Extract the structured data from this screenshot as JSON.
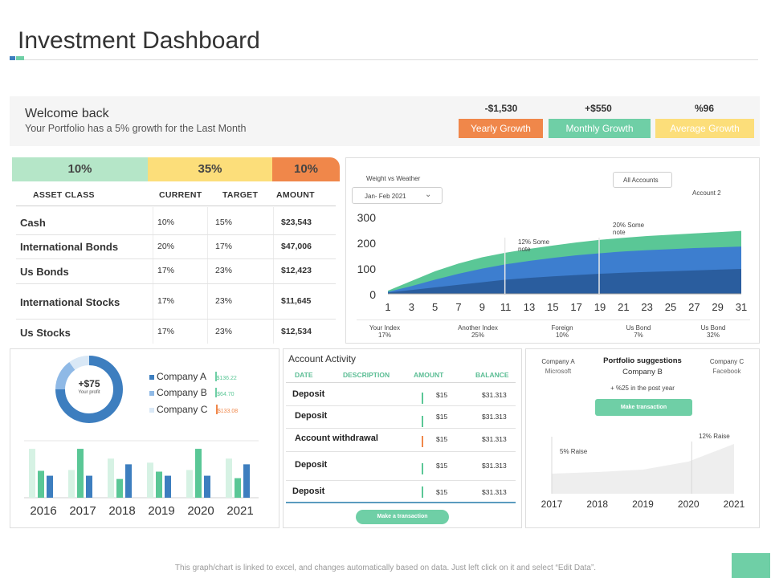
{
  "header": {
    "title": "Investment Dashboard"
  },
  "welcome": {
    "title": "Welcome back",
    "subtitle": "Your Portfolio has a 5% growth for the Last Month",
    "growth": [
      {
        "value": "-$1,530",
        "label": "Yearly Growth",
        "color": "#f0874a"
      },
      {
        "value": "+$550",
        "label": "Monthly Growth",
        "color": "#6fcfa6"
      },
      {
        "value": "%96",
        "label": "Average Growth",
        "color": "#fcde7a"
      }
    ]
  },
  "asset_table": {
    "percentages": [
      {
        "label": "10%",
        "color": "#b5e6c8"
      },
      {
        "label": "35%",
        "color": "#fcde7a"
      },
      {
        "label": "10%",
        "color": "#f0874a"
      }
    ],
    "headers": [
      "ASSET CLASS",
      "CURRENT",
      "TARGET",
      "AMOUNT"
    ],
    "rows": [
      {
        "name": "Cash",
        "current": "10%",
        "target": "15%",
        "amount": "$23,543"
      },
      {
        "name": "International Bonds",
        "current": "20%",
        "target": "17%",
        "amount": "$47,006"
      },
      {
        "name": "Us Bonds",
        "current": "17%",
        "target": "23%",
        "amount": "$12,423"
      },
      {
        "name": "International Stocks",
        "current": "17%",
        "target": "23%",
        "amount": "$11,645"
      },
      {
        "name": "Us  Stocks",
        "current": "17%",
        "target": "23%",
        "amount": "$12,534"
      }
    ]
  },
  "area_chart": {
    "title": "Weight  vs  Weather",
    "date_dropdown": "Jan- Feb 2021",
    "accounts_dropdown": "All Accounts",
    "account_label": "Account 2",
    "note1": "12% Some note",
    "note2": "20% Some note",
    "index_labels": [
      {
        "name": "Your Index",
        "pct": "17%"
      },
      {
        "name": "Another Index",
        "pct": "25%"
      },
      {
        "name": "Foreign",
        "pct": "10%"
      },
      {
        "name": "Us Bond",
        "pct": "7%"
      },
      {
        "name": "Us Bond",
        "pct": "32%"
      }
    ]
  },
  "chart_data": [
    {
      "type": "area",
      "x": [
        1,
        3,
        5,
        7,
        9,
        11,
        13,
        15,
        17,
        19,
        21,
        23,
        25,
        27,
        29,
        31
      ],
      "yticks": [
        0,
        100,
        200,
        300
      ],
      "ylim": [
        0,
        300
      ],
      "series": [
        {
          "values": [
            5,
            15,
            25,
            35,
            45,
            55,
            62,
            68,
            73,
            78,
            82,
            85,
            88,
            91,
            94,
            97
          ],
          "color": "#2a5d9e"
        },
        {
          "values": [
            8,
            30,
            55,
            78,
            98,
            115,
            128,
            140,
            150,
            158,
            165,
            170,
            174,
            178,
            181,
            184
          ],
          "color": "#3d7ecf"
        },
        {
          "values": [
            12,
            50,
            88,
            118,
            142,
            160,
            175,
            188,
            200,
            210,
            218,
            225,
            230,
            235,
            240,
            245
          ],
          "color": "#5ac796"
        }
      ],
      "colors": {
        "layer1": "#2a5d9e",
        "layer2": "#3d7ecf",
        "layer3": "#5ac796"
      }
    },
    {
      "type": "pie",
      "center_value": "+$75",
      "center_label": "Your profit",
      "slices": [
        {
          "name": "Company A",
          "value": 75,
          "amount": "$136.22",
          "color": "#3d7ebf"
        },
        {
          "name": "Company B",
          "value": 15,
          "amount": "$64.70",
          "color": "#8fb9e6"
        },
        {
          "name": "Company C",
          "value": 10,
          "amount": "$133.08",
          "color": "#d9e8f6"
        }
      ],
      "amount_colors": [
        "#6fcfa6",
        "#6fcfa6",
        "#f0874a"
      ]
    },
    {
      "type": "bar",
      "categories": [
        "2016",
        "2017",
        "2018",
        "2019",
        "2020",
        "2021"
      ],
      "series": [
        {
          "values": [
            60,
            34,
            48,
            43,
            34,
            48
          ],
          "color": "#d6f2e4"
        },
        {
          "values": [
            33,
            60,
            23,
            32,
            60,
            24
          ],
          "color": "#5ac796"
        },
        {
          "values": [
            27,
            27,
            41,
            27,
            27,
            41
          ],
          "color": "#3d7ebf"
        }
      ],
      "ylim": [
        0,
        65
      ]
    },
    {
      "type": "area",
      "title": "Portfolio suggestions",
      "categories": [
        "2017",
        "2018",
        "2019",
        "2020",
        "2021"
      ],
      "values": [
        25,
        27,
        30,
        40,
        62
      ],
      "ylim": [
        0,
        75
      ],
      "annotations": [
        "5% Raise",
        "12% Raise"
      ]
    }
  ],
  "activity": {
    "title": "Account Activity",
    "headers": [
      "DATE",
      "DESCRIPTION",
      "AMOUNT",
      "BALANCE"
    ],
    "rows": [
      {
        "desc": "Deposit",
        "amount": "$15",
        "balance": "$31.313",
        "color": "#5ac796"
      },
      {
        "desc": "Deposit",
        "amount": "$15",
        "balance": "$31.313",
        "color": "#5ac796"
      },
      {
        "desc": "Account withdrawal",
        "amount": "$15",
        "balance": "$31.313",
        "color": "#f0874a"
      },
      {
        "desc": "Deposit",
        "amount": "$15",
        "balance": "$31.313",
        "color": "#5ac796"
      },
      {
        "desc": "Deposit",
        "amount": "$15",
        "balance": "$31.313",
        "color": "#5ac796"
      }
    ],
    "button": "Make a transaction"
  },
  "suggestions": {
    "title": "Portfolio suggestions",
    "company_a": "Company A",
    "company_a_sub": "Microsoft",
    "company_b": "Company B",
    "company_c": "Company C",
    "company_c_sub": "Facebook",
    "growth_note": "+ %25 in the post year",
    "button": "Make transaction",
    "raise1": "5% Raise",
    "raise2": "12% Raise"
  },
  "footer": {
    "text": "This graph/chart is linked to excel, and changes automatically based on data. Just left click on it and select “Edit Data”."
  },
  "accent": "#6fcfa6"
}
